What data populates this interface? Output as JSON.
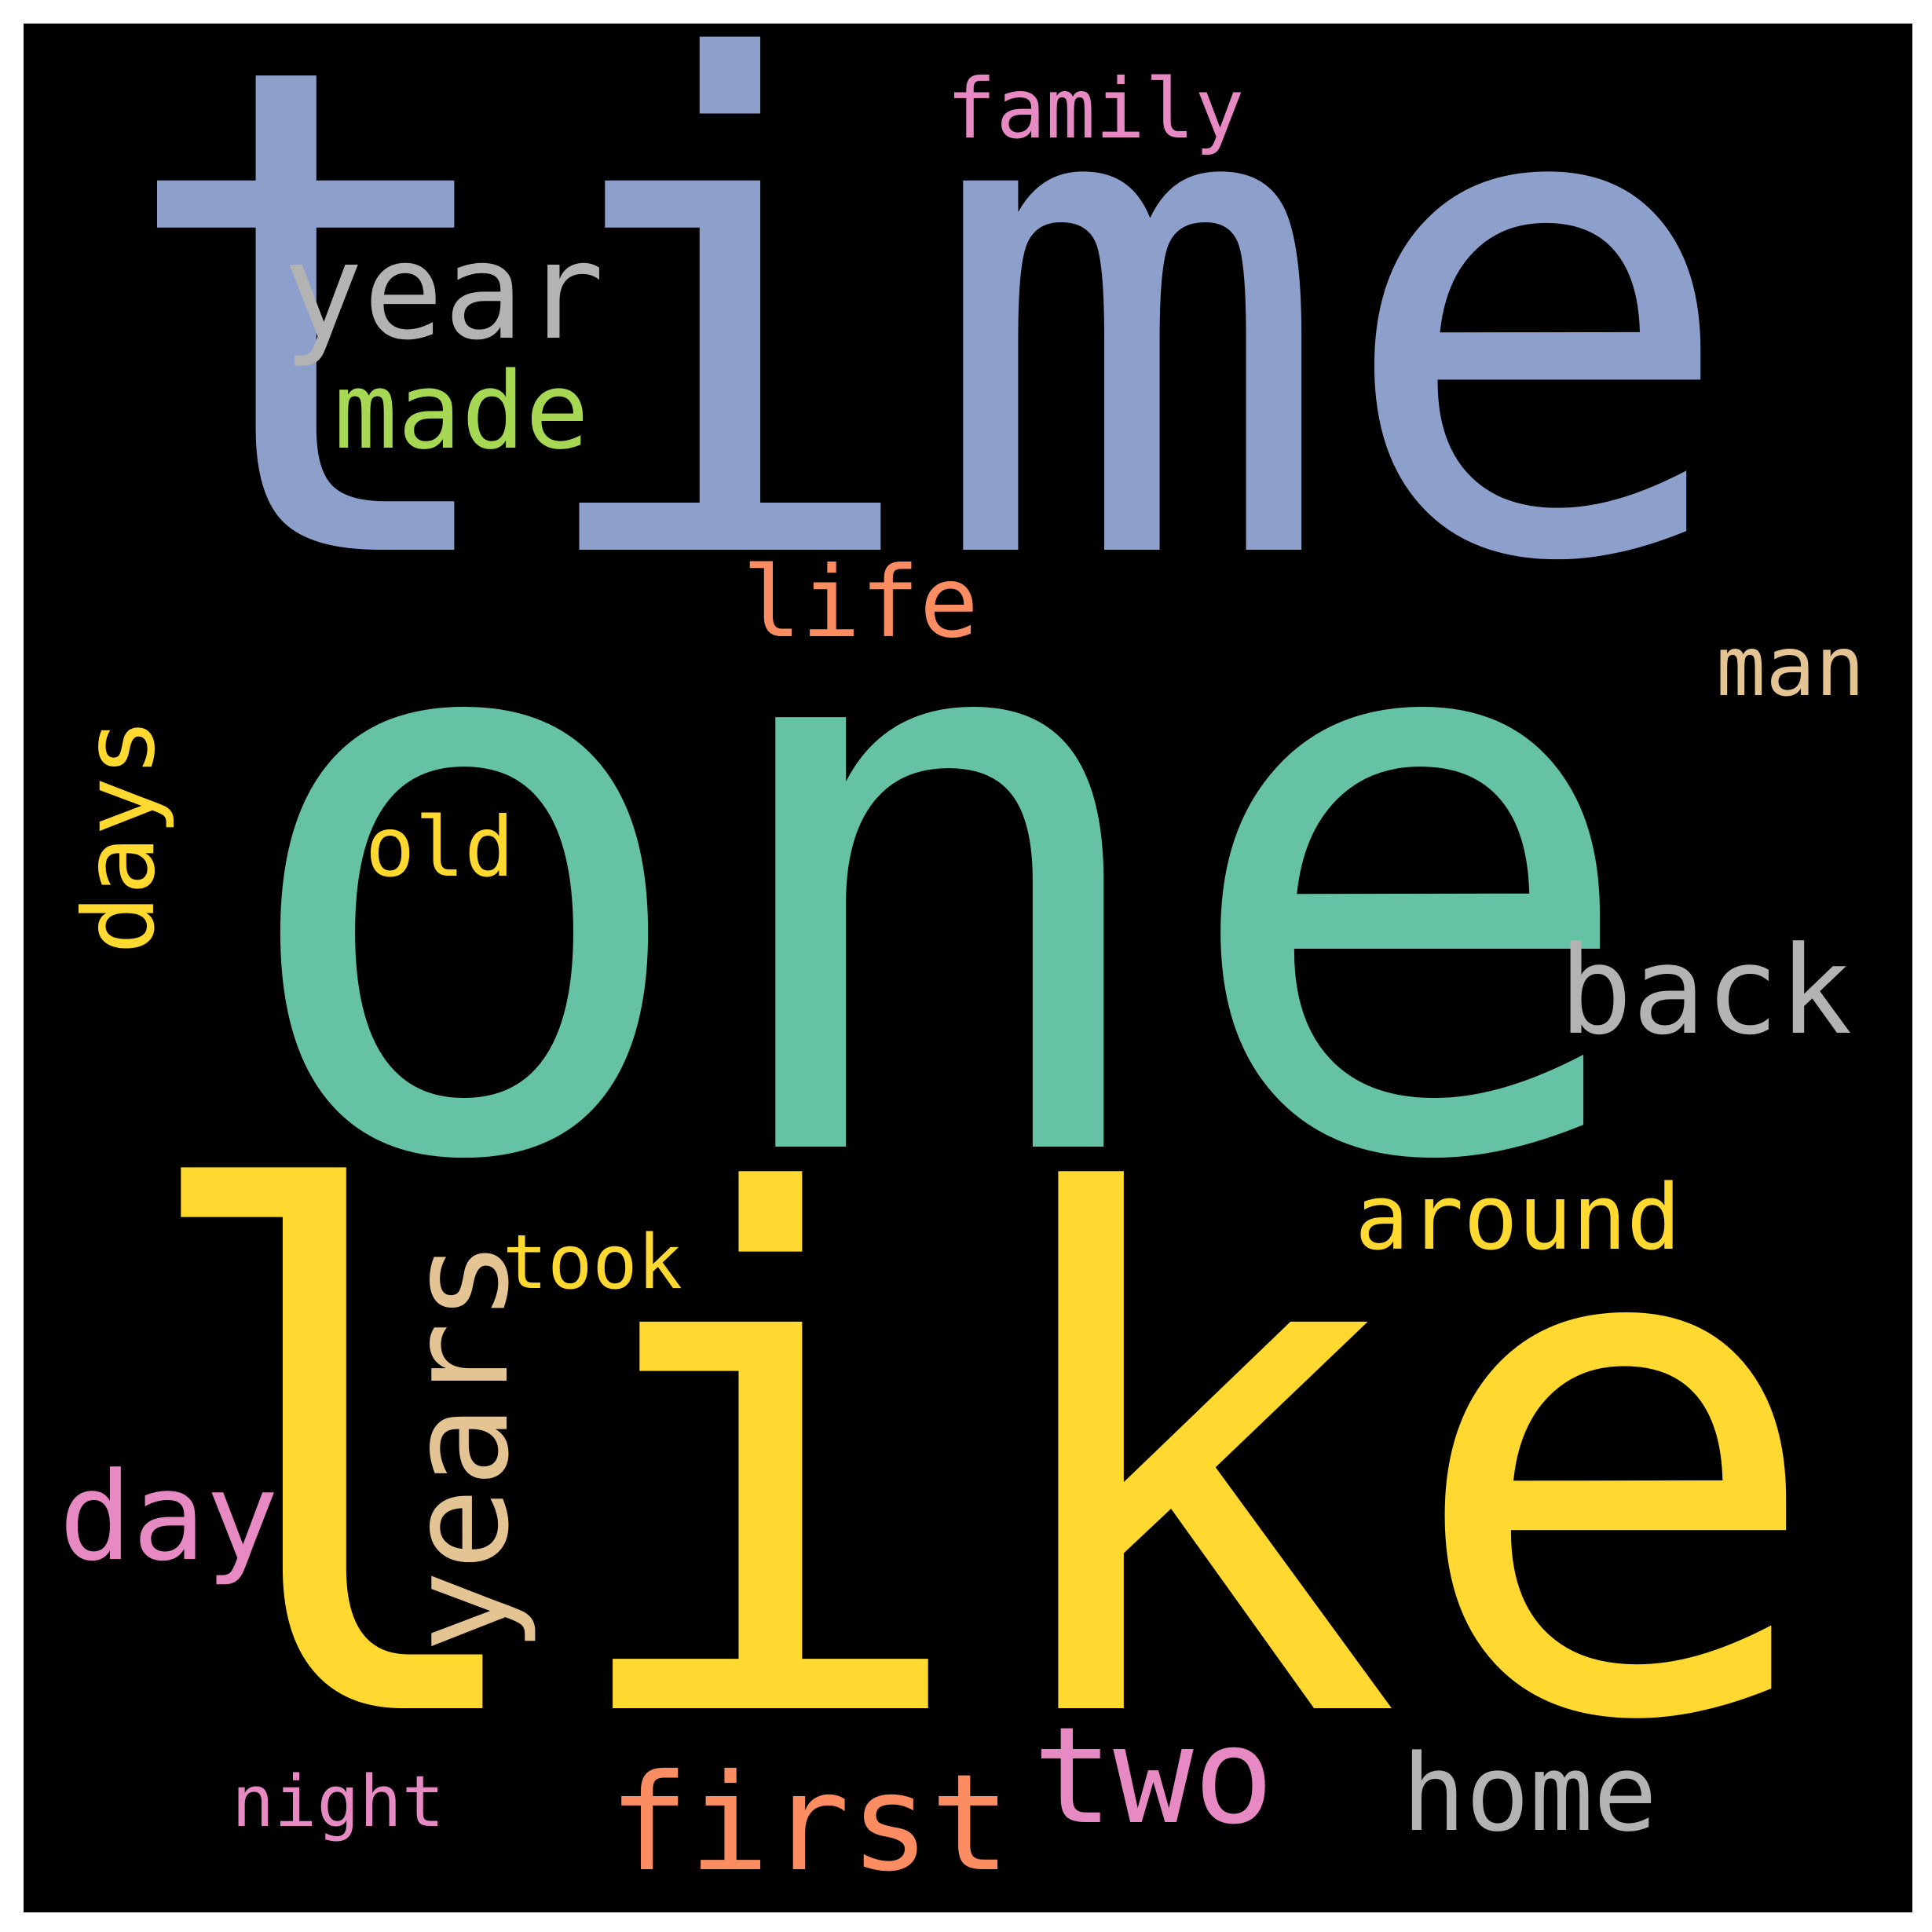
{
  "word_cloud": {
    "background_color": "#000000",
    "words": [
      {
        "text": "time",
        "color": "#8DA0CB"
      },
      {
        "text": "one",
        "color": "#66C2A5"
      },
      {
        "text": "like",
        "color": "#FFD92F"
      },
      {
        "text": "year",
        "color": "#B3B3B3"
      },
      {
        "text": "made",
        "color": "#A6D854"
      },
      {
        "text": "family",
        "color": "#E78AC3"
      },
      {
        "text": "life",
        "color": "#FC8D62"
      },
      {
        "text": "man",
        "color": "#E5C494"
      },
      {
        "text": "days",
        "color": "#FFD92F"
      },
      {
        "text": "old",
        "color": "#FFD92F"
      },
      {
        "text": "back",
        "color": "#B3B3B3"
      },
      {
        "text": "around",
        "color": "#FFD92F"
      },
      {
        "text": "years",
        "color": "#E5C494"
      },
      {
        "text": "took",
        "color": "#FFD92F"
      },
      {
        "text": "day",
        "color": "#E78AC3"
      },
      {
        "text": "first",
        "color": "#FC8D62"
      },
      {
        "text": "two",
        "color": "#E78AC3"
      },
      {
        "text": "home",
        "color": "#B3B3B3"
      },
      {
        "text": "night",
        "color": "#E78AC3"
      }
    ]
  }
}
